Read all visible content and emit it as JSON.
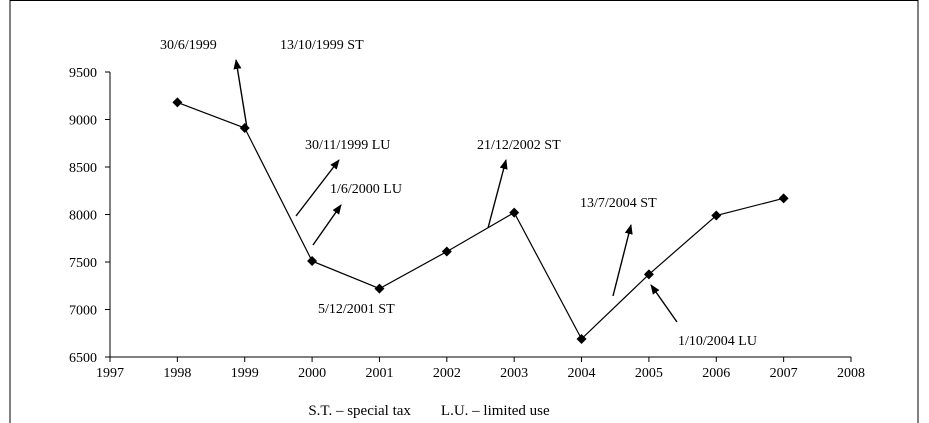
{
  "chart_data": {
    "type": "line",
    "title": "",
    "xlabel": "",
    "ylabel": "",
    "xlim": [
      1997,
      2008
    ],
    "ylim": [
      6500,
      9500
    ],
    "x_ticks": [
      1997,
      1998,
      1999,
      2000,
      2001,
      2002,
      2003,
      2004,
      2005,
      2006,
      2007,
      2008
    ],
    "y_ticks": [
      6500,
      7000,
      7500,
      8000,
      8500,
      9000,
      9500
    ],
    "grid": false,
    "legend": "none",
    "marker": "diamond",
    "color": "#000000",
    "series": [
      {
        "x": [
          1998,
          1999,
          2000,
          2001,
          2002,
          2003,
          2004,
          2005,
          2006,
          2007
        ],
        "values": [
          9180,
          8910,
          7510,
          7220,
          7610,
          8020,
          6690,
          7370,
          7990,
          8170
        ]
      }
    ],
    "annotations": [
      {
        "text": "30/6/1999"
      },
      {
        "text": "13/10/1999 ST"
      },
      {
        "text": "30/11/1999 LU"
      },
      {
        "text": "1/6/2000 LU"
      },
      {
        "text": "5/12/2001 ST"
      },
      {
        "text": "21/12/2002 ST"
      },
      {
        "text": "13/7/2004 ST"
      },
      {
        "text": "1/10/2004 LU"
      }
    ],
    "footnote": "S.T. – special tax        L.U. – limited use"
  }
}
